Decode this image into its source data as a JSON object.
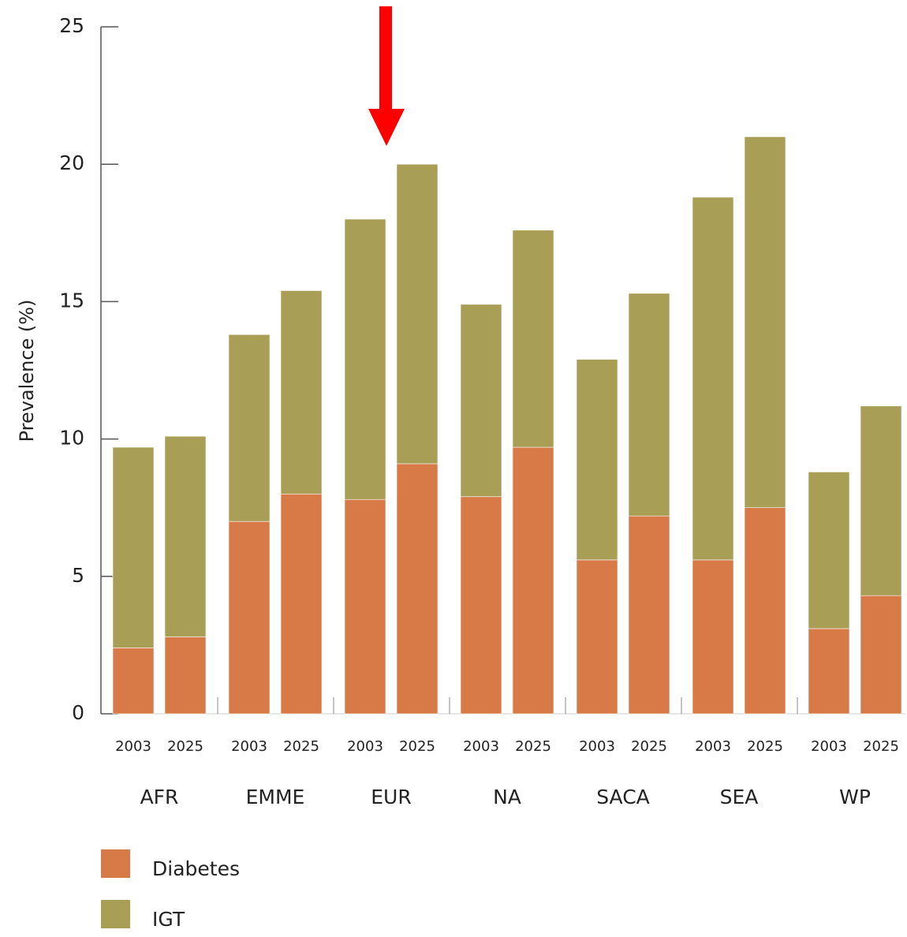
{
  "chart_data": {
    "type": "stacked-bar",
    "ylabel": "Prevalence (%)",
    "groups": [
      "AFR",
      "EMME",
      "EUR",
      "NA",
      "SACA",
      "SEA",
      "WP"
    ],
    "categories": [
      "2003",
      "2025",
      "2003",
      "2025",
      "2003",
      "2025",
      "2003",
      "2025",
      "2003",
      "2025",
      "2003",
      "2025",
      "2003",
      "2025"
    ],
    "series": [
      {
        "name": "Diabetes",
        "color": "#d77a47",
        "values": [
          2.4,
          2.8,
          7.0,
          8.0,
          7.8,
          9.1,
          7.9,
          9.7,
          5.6,
          7.2,
          5.6,
          7.5,
          3.1,
          4.3
        ]
      },
      {
        "name": "IGT",
        "color": "#a99e55",
        "values": [
          7.3,
          7.3,
          6.8,
          7.4,
          10.2,
          10.9,
          7.0,
          7.9,
          7.3,
          8.1,
          13.2,
          13.5,
          5.7,
          6.9
        ]
      }
    ],
    "ylim": [
      0,
      25
    ],
    "yticks": [
      0,
      5,
      10,
      15,
      20,
      25
    ]
  }
}
